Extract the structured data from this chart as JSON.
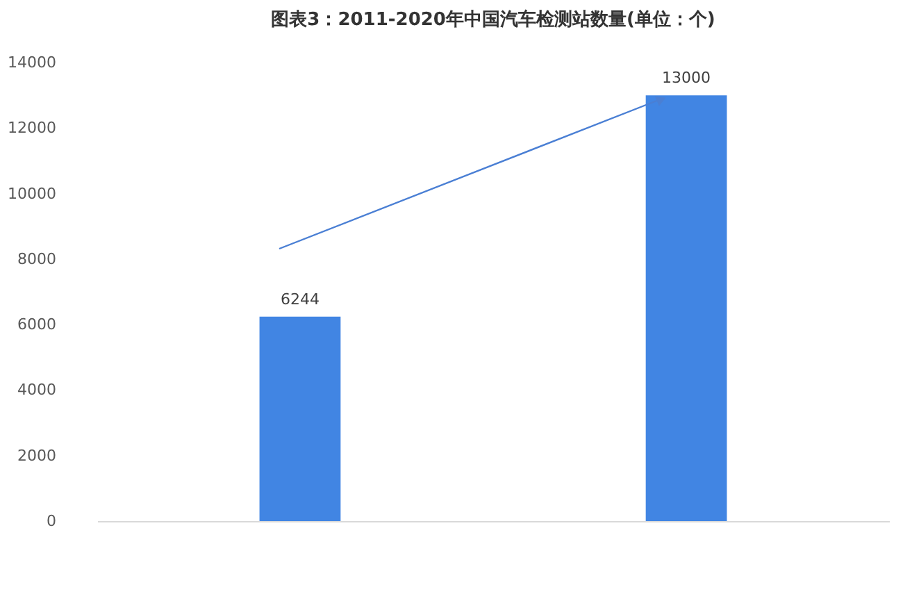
{
  "chart_data": {
    "type": "bar",
    "title": "图表3：2011-2020年中国汽车检测站数量(单位：个)",
    "categories": [
      null,
      null
    ],
    "values": [
      6244,
      13000
    ],
    "color": "#4185e3",
    "ylim": [
      0,
      14000
    ],
    "yticks": [
      0,
      2000,
      4000,
      6000,
      8000,
      10000,
      12000,
      14000
    ],
    "grid": false,
    "data_labels": true
  }
}
